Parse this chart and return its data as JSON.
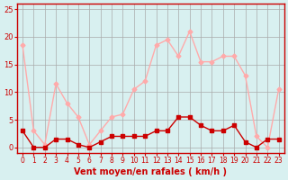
{
  "x": [
    0,
    1,
    2,
    3,
    4,
    5,
    6,
    7,
    8,
    9,
    10,
    11,
    12,
    13,
    14,
    15,
    16,
    17,
    18,
    19,
    20,
    21,
    22,
    23
  ],
  "wind_avg": [
    3,
    0,
    0,
    1.5,
    1.5,
    0.5,
    0,
    1,
    2,
    2,
    2,
    2,
    3,
    3,
    5.5,
    5.5,
    4,
    3,
    3,
    4,
    1,
    0,
    1.5,
    1.5
  ],
  "wind_gust": [
    18.5,
    3,
    0.5,
    11.5,
    8,
    5.5,
    0.5,
    3,
    5.5,
    6,
    10.5,
    12,
    18.5,
    19.5,
    16.5,
    21,
    15.5,
    15.5,
    16.5,
    16.5,
    13,
    2,
    0,
    10.5
  ],
  "wind_avg_color": "#cc0000",
  "wind_gust_color": "#ffaaaa",
  "bg_color": "#d8f0f0",
  "grid_color": "#aaaaaa",
  "axis_color": "#cc0000",
  "ylabel_ticks": [
    0,
    5,
    10,
    15,
    20,
    25
  ],
  "ylim": [
    -1,
    26
  ],
  "xlabel": "Vent moyen/en rafales ( km/h )",
  "xlabel_color": "#cc0000",
  "tick_color": "#cc0000",
  "spine_color": "#cc0000"
}
